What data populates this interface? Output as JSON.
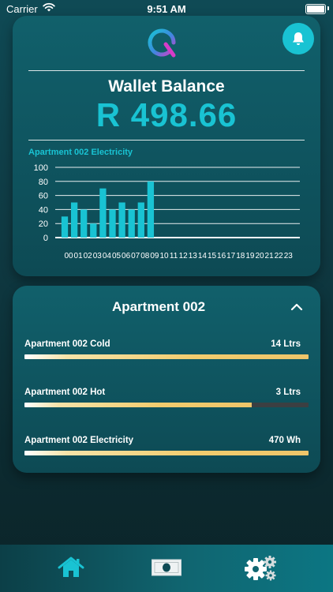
{
  "status_bar": {
    "carrier": "Carrier",
    "time": "9:51 AM"
  },
  "wallet": {
    "title": "Wallet Balance",
    "amount": "R 498.66"
  },
  "chart_data": {
    "type": "bar",
    "title": "Apartment 002 Electricity",
    "categories": [
      "00",
      "01",
      "02",
      "03",
      "04",
      "05",
      "06",
      "07",
      "08",
      "09",
      "10",
      "11",
      "12",
      "13",
      "14",
      "15",
      "16",
      "17",
      "18",
      "19",
      "20",
      "21",
      "22",
      "23"
    ],
    "values": [
      30,
      50,
      40,
      20,
      70,
      40,
      50,
      40,
      50,
      80,
      null,
      null,
      null,
      null,
      null,
      null,
      null,
      null,
      null,
      null,
      null,
      null,
      null,
      null
    ],
    "ylim": [
      0,
      100
    ],
    "yticks": [
      0,
      20,
      40,
      60,
      80,
      100
    ],
    "grid": true,
    "bar_color": "#19c3d3"
  },
  "apartment": {
    "title": "Apartment 002",
    "meters": [
      {
        "label": "Apartment 002 Cold",
        "value": "14 Ltrs",
        "fill": 1.0
      },
      {
        "label": "Apartment 002 Hot",
        "value": "3 Ltrs",
        "fill": 0.8
      },
      {
        "label": "Apartment 002 Electricity",
        "value": "470 Wh",
        "fill": 1.0
      }
    ]
  },
  "colors": {
    "accent": "#19c3d3",
    "meter_fill": "#f2cc6e",
    "logo_pink": "#d63cc8"
  },
  "icons": [
    "wifi-icon",
    "battery-icon",
    "logo-icon",
    "bell-icon",
    "chevron-up-icon",
    "home-icon",
    "wallet-icon",
    "settings-icon"
  ]
}
